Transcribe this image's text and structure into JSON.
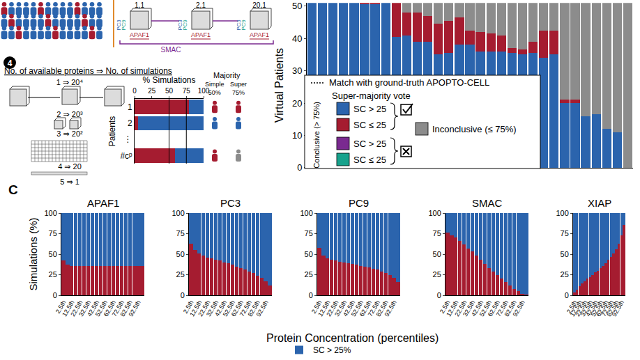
{
  "chart_data": [
    {
      "type": "bar",
      "stacked": true,
      "y_label": "Virtual Patients",
      "tick_labels": "y",
      "grid": false,
      "categories": [
        null,
        null,
        null,
        null,
        null,
        null,
        null,
        null,
        null,
        null,
        null,
        null,
        null,
        null,
        null,
        null,
        null,
        null,
        null,
        null,
        null,
        null,
        null,
        null,
        null,
        null,
        null,
        null,
        null,
        null,
        null
      ],
      "series": [
        {
          "name": "SC > 25",
          "color": "#2b64ad",
          "values": [
            51,
            51,
            51,
            51,
            51,
            50.5,
            50.5,
            51,
            40.5,
            41,
            39,
            39,
            35,
            35.5,
            38,
            38,
            36,
            36,
            36,
            35.5,
            35,
            35.5,
            34,
            35,
            20,
            20,
            16,
            16.5,
            12,
            11,
            0
          ]
        },
        {
          "name": "SC ≤ 25",
          "color": "#a51c30",
          "values": [
            0,
            0,
            0,
            0,
            0,
            0.5,
            0.5,
            0,
            10.5,
            7,
            9,
            8,
            9.5,
            10,
            8.5,
            4.5,
            6,
            5.5,
            5,
            1.5,
            1.5,
            3.5,
            8.5,
            7.5,
            1,
            1,
            0,
            0,
            0,
            0,
            0
          ]
        },
        {
          "name": "Inconclusive (≤ 75%)",
          "color": "#8c8c8c",
          "values": [
            0,
            0,
            0,
            0,
            0,
            0,
            0,
            0,
            0,
            3,
            3,
            4,
            6.5,
            5.5,
            4.5,
            8.5,
            9,
            9.5,
            10,
            14,
            14.5,
            12,
            8.5,
            8.5,
            30,
            30,
            35,
            34.5,
            39,
            40,
            51
          ]
        }
      ],
      "ylim": [
        0,
        51
      ],
      "yticks": [
        0,
        10,
        20,
        30,
        40,
        50
      ]
    },
    {
      "type": "bar",
      "orientation": "horizontal",
      "stacked": true,
      "grid": false,
      "x_label": "% Simulations",
      "y_label": "Patients",
      "categories": [
        "1",
        "2",
        "⋮",
        "#cᵖ"
      ],
      "series": [
        {
          "color": "#a51c30",
          "values": [
            79,
            5,
            null,
            59
          ]
        },
        {
          "color": "#2b64ad",
          "values": [
            21,
            95,
            null,
            41
          ]
        }
      ],
      "xlim": [
        0,
        100
      ],
      "xticks": [
        0,
        25,
        50,
        75,
        100
      ],
      "majority": {
        "title": "Majority",
        "columns": [
          {
            "label": "Simple",
            "threshold": 50,
            "threshold_label": "50%",
            "votes": [
              "#a51c30",
              "#2b64ad",
              null,
              "#a51c30"
            ]
          },
          {
            "label": "Super",
            "threshold": 75,
            "threshold_label": "75%",
            "votes": [
              "#a51c30",
              "#2b64ad",
              null,
              "#8c8c8c"
            ]
          }
        ]
      }
    },
    {
      "type": "bar",
      "stacked": true,
      "title": "APAF1",
      "y_label": "Simulations (%)",
      "grid": false,
      "categories": [
        "2.5th",
        null,
        "12.5th",
        null,
        "22.5th",
        null,
        "32.5th",
        null,
        "42.5th",
        null,
        "52.5th",
        null,
        "62.5th",
        null,
        "72.5th",
        null,
        "82.5th",
        null,
        "92.5th",
        null
      ],
      "series": [
        {
          "color": "#a51c30",
          "values": [
            42,
            37,
            36,
            36,
            36,
            36,
            36,
            36,
            36,
            36,
            36,
            36,
            36,
            36,
            36,
            36,
            36,
            36,
            36,
            36
          ]
        },
        {
          "name": "SC > 25%",
          "color": "#2b64ad",
          "values": [
            58,
            63,
            64,
            64,
            64,
            64,
            64,
            64,
            64,
            64,
            64,
            64,
            64,
            64,
            64,
            64,
            64,
            64,
            64,
            64
          ]
        }
      ],
      "ylim": [
        0,
        100
      ],
      "yticks": [
        0,
        25,
        50,
        75,
        100
      ]
    },
    {
      "type": "bar",
      "stacked": true,
      "title": "PC3",
      "grid": false,
      "categories": [
        "2.5th",
        null,
        "12.5th",
        null,
        "22.5th",
        null,
        "32.5th",
        null,
        "42.5th",
        null,
        "52.5th",
        null,
        "62.5th",
        null,
        "72.5th",
        null,
        "82.5th",
        null,
        "92.5th",
        null
      ],
      "series": [
        {
          "color": "#a51c30",
          "values": [
            63,
            55,
            51,
            48,
            46,
            45,
            43,
            42,
            40,
            39,
            37,
            35,
            33,
            31,
            29,
            27,
            24,
            21,
            17,
            12
          ]
        },
        {
          "name": "SC > 25%",
          "color": "#2b64ad",
          "values": [
            37,
            45,
            49,
            52,
            54,
            55,
            57,
            58,
            60,
            61,
            63,
            65,
            67,
            69,
            71,
            73,
            76,
            79,
            83,
            88
          ]
        }
      ],
      "ylim": [
        0,
        100
      ],
      "yticks": [
        0,
        25,
        50,
        75,
        100
      ]
    },
    {
      "type": "bar",
      "stacked": true,
      "title": "PC9",
      "grid": false,
      "categories": [
        "2.5th",
        null,
        "12.5th",
        null,
        "22.5th",
        null,
        "32.5th",
        null,
        "42.5th",
        null,
        "52.5th",
        null,
        "62.5th",
        null,
        "72.5th",
        null,
        "82.5th",
        null,
        "92.5th",
        null
      ],
      "series": [
        {
          "color": "#a51c30",
          "values": [
            58,
            48,
            45,
            43,
            42,
            41,
            40,
            39,
            38,
            37,
            36,
            35,
            34,
            32,
            31,
            29,
            27,
            25,
            21,
            16
          ]
        },
        {
          "name": "SC > 25%",
          "color": "#2b64ad",
          "values": [
            42,
            52,
            55,
            57,
            58,
            59,
            60,
            61,
            62,
            63,
            64,
            65,
            66,
            68,
            69,
            71,
            73,
            75,
            79,
            84
          ]
        }
      ],
      "ylim": [
        0,
        100
      ],
      "yticks": [
        0,
        25,
        50,
        75,
        100
      ]
    },
    {
      "type": "bar",
      "stacked": true,
      "title": "SMAC",
      "grid": false,
      "categories": [
        "2.5th",
        null,
        "12.5th",
        null,
        "22.5th",
        null,
        "32.5th",
        null,
        "42.5th",
        null,
        "52.5th",
        null,
        "62.5th",
        null,
        "72.5th",
        null,
        "82.5th",
        null,
        "92.5th",
        null
      ],
      "series": [
        {
          "color": "#a51c30",
          "values": [
            76,
            73,
            70,
            66,
            62,
            57,
            53,
            48,
            43,
            38,
            33,
            29,
            25,
            20,
            16,
            12,
            8,
            5,
            2,
            1
          ]
        },
        {
          "name": "SC > 25%",
          "color": "#2b64ad",
          "values": [
            24,
            27,
            30,
            34,
            38,
            43,
            47,
            52,
            57,
            62,
            67,
            71,
            75,
            80,
            84,
            88,
            92,
            95,
            98,
            99
          ]
        }
      ],
      "ylim": [
        0,
        100
      ],
      "yticks": [
        0,
        25,
        50,
        75,
        100
      ]
    },
    {
      "type": "bar",
      "stacked": true,
      "title": "XIAP",
      "grid": false,
      "categories": [
        "2.5th",
        null,
        "12.5th",
        null,
        "22.5th",
        null,
        "32.5th",
        null,
        "42.5th",
        null,
        "52.5th",
        null,
        "62.5th",
        null,
        "72.5th",
        null,
        "82.5th",
        null,
        "92.5th",
        null
      ],
      "series": [
        {
          "color": "#a51c30",
          "values": [
            3,
            7,
            11,
            14,
            17,
            20,
            22,
            25,
            28,
            30,
            33,
            36,
            39,
            43,
            47,
            51,
            56,
            63,
            73,
            86
          ]
        },
        {
          "name": "SC > 25%",
          "color": "#2b64ad",
          "values": [
            97,
            93,
            89,
            86,
            83,
            80,
            78,
            75,
            72,
            70,
            67,
            64,
            61,
            57,
            53,
            49,
            44,
            37,
            27,
            14
          ]
        }
      ],
      "ylim": [
        0,
        100
      ],
      "yticks": [
        0,
        25,
        50,
        75,
        100
      ]
    }
  ],
  "key": {
    "line": "Match with ground-truth APOPTO-CELL",
    "title": "Super-majority vote",
    "group": "Conclusive (> 75%)",
    "mismatch_colors": [
      "#7a2a90",
      "#17a28c"
    ]
  },
  "panel_c": {
    "label": "C",
    "x_label": "Protein Concentration (percentiles)"
  },
  "diagram": {
    "cube_labels": [
      "1,1",
      "2,1",
      "20,1"
    ],
    "cube_side": [
      "PC9",
      "PC3"
    ],
    "cube_bottom": "APAF1",
    "bracket": "SMAC",
    "step": "4",
    "heading": "No. of available proteins ⇒ No. of simulations",
    "rows": [
      "1 ⇒ 20⁴",
      "2 ⇒ 20³",
      "3 ⇒ 20²",
      "4 ⇒ 20",
      "5 ⇒ 1"
    ]
  }
}
